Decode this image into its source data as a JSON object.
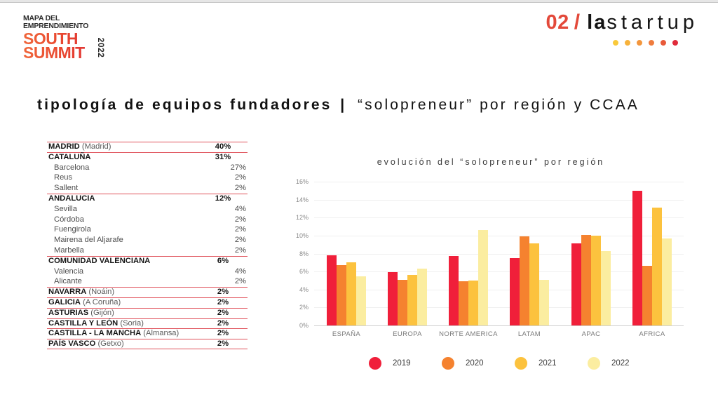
{
  "logo": {
    "line1": "MAPA DEL",
    "line2": "EMPRENDIMIENTO",
    "brand1": "SOUTH",
    "brand2": "SUMMIT",
    "year": "2022"
  },
  "section": {
    "number": "02",
    "slash": "/",
    "prefix": "la",
    "word": "startup",
    "dot_colors": [
      "#f9c93b",
      "#f7b23b",
      "#f3963d",
      "#ef7c3e",
      "#e85a3a",
      "#e02b3a"
    ]
  },
  "title": {
    "bold": "tipología de equipos fundadores",
    "separator": "|",
    "light": "“solopreneur” por región y CCAA"
  },
  "ccaa_table": [
    {
      "type": "main",
      "name": "MADRID",
      "city": "(Madrid)",
      "pct": "40%"
    },
    {
      "type": "main",
      "name": "CATALUÑA",
      "city": "",
      "pct": "31%"
    },
    {
      "type": "sub",
      "name": "Barcelona",
      "pct": "27%"
    },
    {
      "type": "sub",
      "name": "Reus",
      "pct": "2%"
    },
    {
      "type": "sub",
      "name": "Sallent",
      "pct": "2%"
    },
    {
      "type": "main",
      "name": "ANDALUCIA",
      "city": "",
      "pct": "12%"
    },
    {
      "type": "sub",
      "name": "Sevilla",
      "pct": "4%"
    },
    {
      "type": "sub",
      "name": "Córdoba",
      "pct": "2%"
    },
    {
      "type": "sub",
      "name": "Fuengirola",
      "pct": "2%"
    },
    {
      "type": "sub",
      "name": "Mairena del Aljarafe",
      "pct": "2%"
    },
    {
      "type": "sub",
      "name": "Marbella",
      "pct": "2%"
    },
    {
      "type": "main",
      "name": "COMUNIDAD VALENCIANA",
      "city": "",
      "pct": "6%"
    },
    {
      "type": "sub",
      "name": "Valencia",
      "pct": "4%"
    },
    {
      "type": "sub",
      "name": "Alicante",
      "pct": "2%"
    },
    {
      "type": "main",
      "name": "NAVARRA",
      "city": "(Noáin)",
      "pct": "2%"
    },
    {
      "type": "main",
      "name": "GALICIA",
      "city": "(A Coruña)",
      "pct": "2%"
    },
    {
      "type": "main",
      "name": "ASTURIAS",
      "city": "(Gijón)",
      "pct": "2%"
    },
    {
      "type": "main",
      "name": "CASTILLA Y LEÓN",
      "city": "(Soria)",
      "pct": "2%"
    },
    {
      "type": "main",
      "name": "CASTILLA - LA MANCHA",
      "city": "(Almansa)",
      "pct": "2%"
    },
    {
      "type": "main",
      "name": "PAÍS VASCO",
      "city": "(Getxo)",
      "pct": "2%"
    }
  ],
  "chart_data": {
    "type": "bar",
    "title": "evolución del “solopreneur” por región",
    "xlabel": "",
    "ylabel": "",
    "categories": [
      "ESPAÑA",
      "EUROPA",
      "NORTE AMERICA",
      "LATAM",
      "APAC",
      "AFRICA"
    ],
    "series": [
      {
        "name": "2019",
        "color": "#f01f3a",
        "values": [
          7.8,
          5.9,
          7.7,
          7.5,
          9.1,
          15.0
        ]
      },
      {
        "name": "2020",
        "color": "#f5822f",
        "values": [
          6.7,
          5.1,
          4.9,
          9.9,
          10.1,
          6.6
        ]
      },
      {
        "name": "2021",
        "color": "#fcc23e",
        "values": [
          7.0,
          5.6,
          5.0,
          9.1,
          10.0,
          13.1
        ]
      },
      {
        "name": "2022",
        "color": "#fbeda0",
        "values": [
          5.5,
          6.3,
          10.6,
          5.1,
          8.3,
          9.7
        ]
      }
    ],
    "yticks": [
      "0%",
      "2%",
      "4%",
      "6%",
      "8%",
      "10%",
      "12%",
      "14%",
      "16%"
    ],
    "ylim": [
      0,
      16
    ],
    "unit": "%",
    "grid": true,
    "legend_position": "bottom"
  }
}
